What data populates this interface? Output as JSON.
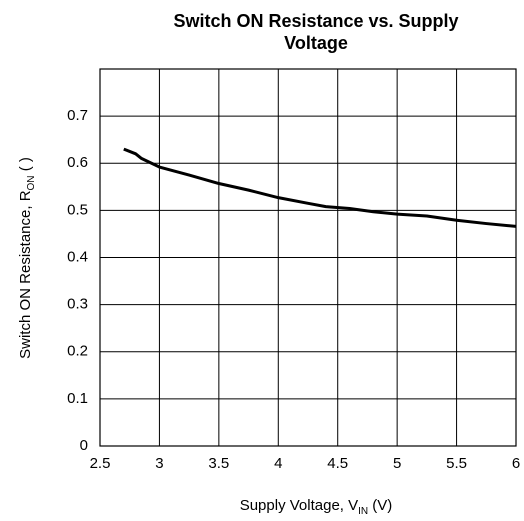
{
  "chart_data": {
    "type": "line",
    "title": [
      "Switch ON Resistance vs. Supply",
      "Voltage"
    ],
    "xlabel": [
      "Supply Voltage, V",
      "IN",
      " (V)"
    ],
    "ylabel": [
      "Switch ON Resistance, R",
      "ON",
      " ( )"
    ],
    "x": [
      2.7,
      2.8,
      2.85,
      3.0,
      3.25,
      3.5,
      3.75,
      4.0,
      4.25,
      4.4,
      4.6,
      4.8,
      5.0,
      5.25,
      5.5,
      5.75,
      6.0
    ],
    "series": [
      {
        "name": "RON",
        "color": "#000000",
        "values": [
          0.63,
          0.62,
          0.61,
          0.592,
          0.575,
          0.557,
          0.543,
          0.527,
          0.515,
          0.508,
          0.504,
          0.497,
          0.492,
          0.488,
          0.479,
          0.472,
          0.466
        ]
      }
    ],
    "xlim": [
      2.5,
      6
    ],
    "xticks": [
      2.5,
      3,
      3.5,
      4,
      4.5,
      5,
      5.5,
      6
    ],
    "ylim": [
      0,
      0.8
    ],
    "yticks": [
      0,
      0.1,
      0.2,
      0.3,
      0.4,
      0.5,
      0.6,
      0.7
    ],
    "grid": true
  }
}
